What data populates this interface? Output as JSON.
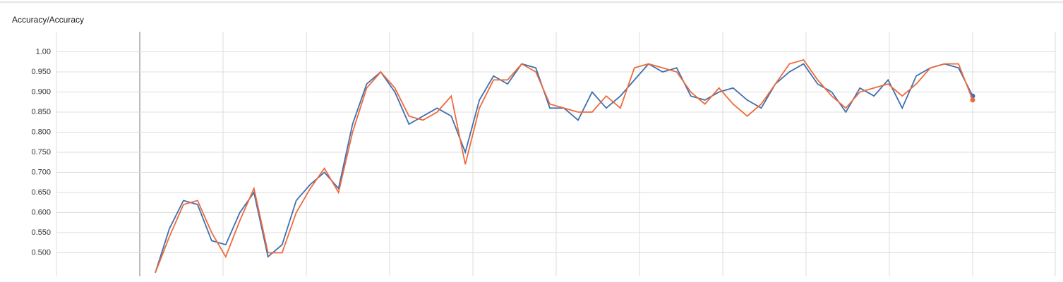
{
  "chart_data": {
    "type": "line",
    "title": "Accuracy/Accuracy",
    "categories": [
      null,
      null,
      null,
      null,
      null,
      null,
      null,
      null,
      null,
      null,
      null,
      null,
      null,
      null,
      null,
      null,
      null,
      null,
      null,
      null,
      null,
      null,
      null,
      null,
      null,
      null,
      null,
      null,
      null,
      null,
      null,
      null,
      null,
      null,
      null,
      null,
      null,
      null,
      null,
      null,
      null,
      null,
      null,
      null,
      null,
      null,
      null,
      null,
      null,
      null,
      null,
      null,
      null,
      null,
      null,
      null,
      null,
      null,
      null
    ],
    "series": [
      {
        "name": "blue",
        "color": "#3f6fae",
        "values": [
          0.45,
          0.56,
          0.63,
          0.62,
          0.53,
          0.52,
          0.6,
          0.65,
          0.49,
          0.52,
          0.63,
          0.67,
          0.7,
          0.66,
          0.82,
          0.92,
          0.95,
          0.9,
          0.82,
          0.84,
          0.86,
          0.84,
          0.75,
          0.88,
          0.94,
          0.92,
          0.97,
          0.96,
          0.86,
          0.86,
          0.83,
          0.9,
          0.86,
          0.89,
          0.93,
          0.97,
          0.95,
          0.96,
          0.89,
          0.88,
          0.9,
          0.91,
          0.88,
          0.86,
          0.92,
          0.95,
          0.97,
          0.92,
          0.9,
          0.85,
          0.91,
          0.89,
          0.93,
          0.86,
          0.94,
          0.96,
          0.97,
          0.96,
          0.89
        ]
      },
      {
        "name": "orange",
        "color": "#ef6a3c",
        "values": [
          0.45,
          0.54,
          0.62,
          0.63,
          0.55,
          0.49,
          0.58,
          0.66,
          0.5,
          0.5,
          0.6,
          0.66,
          0.71,
          0.65,
          0.8,
          0.91,
          0.95,
          0.91,
          0.84,
          0.83,
          0.85,
          0.89,
          0.72,
          0.86,
          0.93,
          0.93,
          0.97,
          0.95,
          0.87,
          0.86,
          0.85,
          0.85,
          0.89,
          0.86,
          0.96,
          0.97,
          0.96,
          0.95,
          0.9,
          0.87,
          0.91,
          0.87,
          0.84,
          0.87,
          0.92,
          0.97,
          0.98,
          0.93,
          0.89,
          0.86,
          0.9,
          0.91,
          0.92,
          0.89,
          0.92,
          0.96,
          0.97,
          0.97,
          0.88
        ]
      }
    ],
    "ylim": [
      0.45,
      1.05
    ],
    "yticks": [
      {
        "value": 0.5,
        "label": "0.500"
      },
      {
        "value": 0.55,
        "label": "0.550"
      },
      {
        "value": 0.6,
        "label": "0.600"
      },
      {
        "value": 0.65,
        "label": "0.650"
      },
      {
        "value": 0.7,
        "label": "0.700"
      },
      {
        "value": 0.75,
        "label": "0.750"
      },
      {
        "value": 0.8,
        "label": "0.800"
      },
      {
        "value": 0.85,
        "label": "0.850"
      },
      {
        "value": 0.9,
        "label": "0.900"
      },
      {
        "value": 0.95,
        "label": "0.950"
      },
      {
        "value": 1.0,
        "label": "1.00"
      }
    ],
    "grid": true
  }
}
